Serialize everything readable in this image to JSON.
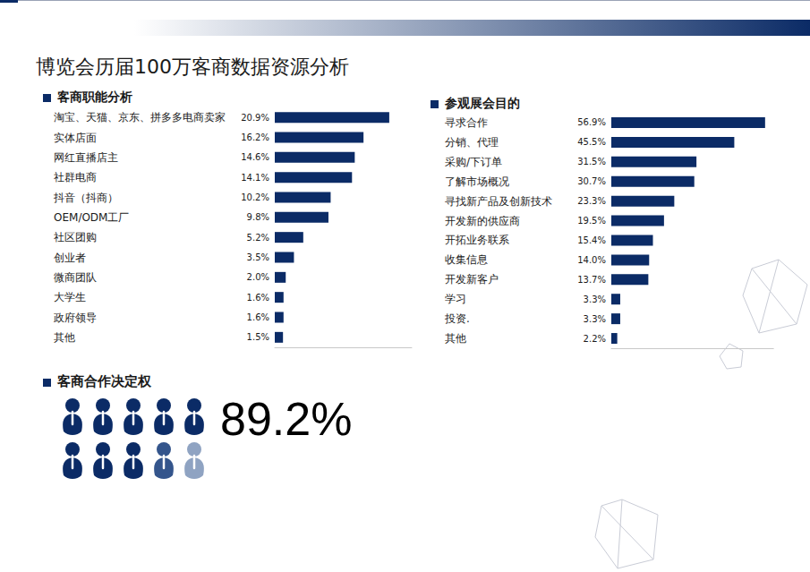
{
  "title": "博览会历届100万客商数据资源分析",
  "chart_data": [
    {
      "type": "bar",
      "title": "客商职能分析",
      "orientation": "horizontal",
      "categories": [
        "淘宝、天猫、京东、拼多多电商卖家",
        "实体店面",
        "网红直播店主",
        "社群电商",
        "抖音（抖商）",
        "OEM/ODM工厂",
        "社区团购",
        "创业者",
        "微商团队",
        "大学生",
        "政府领导",
        "其他"
      ],
      "values": [
        20.9,
        16.2,
        14.6,
        14.1,
        10.2,
        9.8,
        5.2,
        3.5,
        2.0,
        1.6,
        1.6,
        1.5
      ],
      "value_labels": [
        "20.9%",
        "16.2%",
        "14.6%",
        "14.1%",
        "10.2%",
        "9.8%",
        "5.2%",
        "3.5%",
        "2.0%",
        "1.6%",
        "1.6%",
        "1.5%"
      ],
      "data_labels": true,
      "tick_labels": "y",
      "grid": false,
      "xlim": [
        0,
        25
      ],
      "color": "#0b2b66"
    },
    {
      "type": "bar",
      "title": "参观展会目的",
      "orientation": "horizontal",
      "categories": [
        "寻求合作",
        "分销、代理",
        "采购/下订单",
        "了解市场概况",
        "寻找新产品及创新技术",
        "开发新的供应商",
        "开拓业务联系",
        "收集信息",
        "开发新客户",
        "学习",
        "投资.",
        "其他"
      ],
      "values": [
        56.9,
        45.5,
        31.5,
        30.7,
        23.3,
        19.5,
        15.4,
        14.0,
        13.7,
        3.3,
        3.3,
        2.2
      ],
      "value_labels": [
        "56.9%",
        "45.5%",
        "31.5%",
        "30.7%",
        "23.3%",
        "19.5%",
        "15.4%",
        "14.0%",
        "13.7%",
        "3.3%",
        "3.3%",
        "2.2%"
      ],
      "data_labels": true,
      "tick_labels": "y",
      "grid": false,
      "xlim": [
        0,
        60
      ],
      "color": "#0b2b66"
    }
  ],
  "decision": {
    "title": "客商合作决定权",
    "value": 89.2,
    "value_label": "89.2%"
  }
}
